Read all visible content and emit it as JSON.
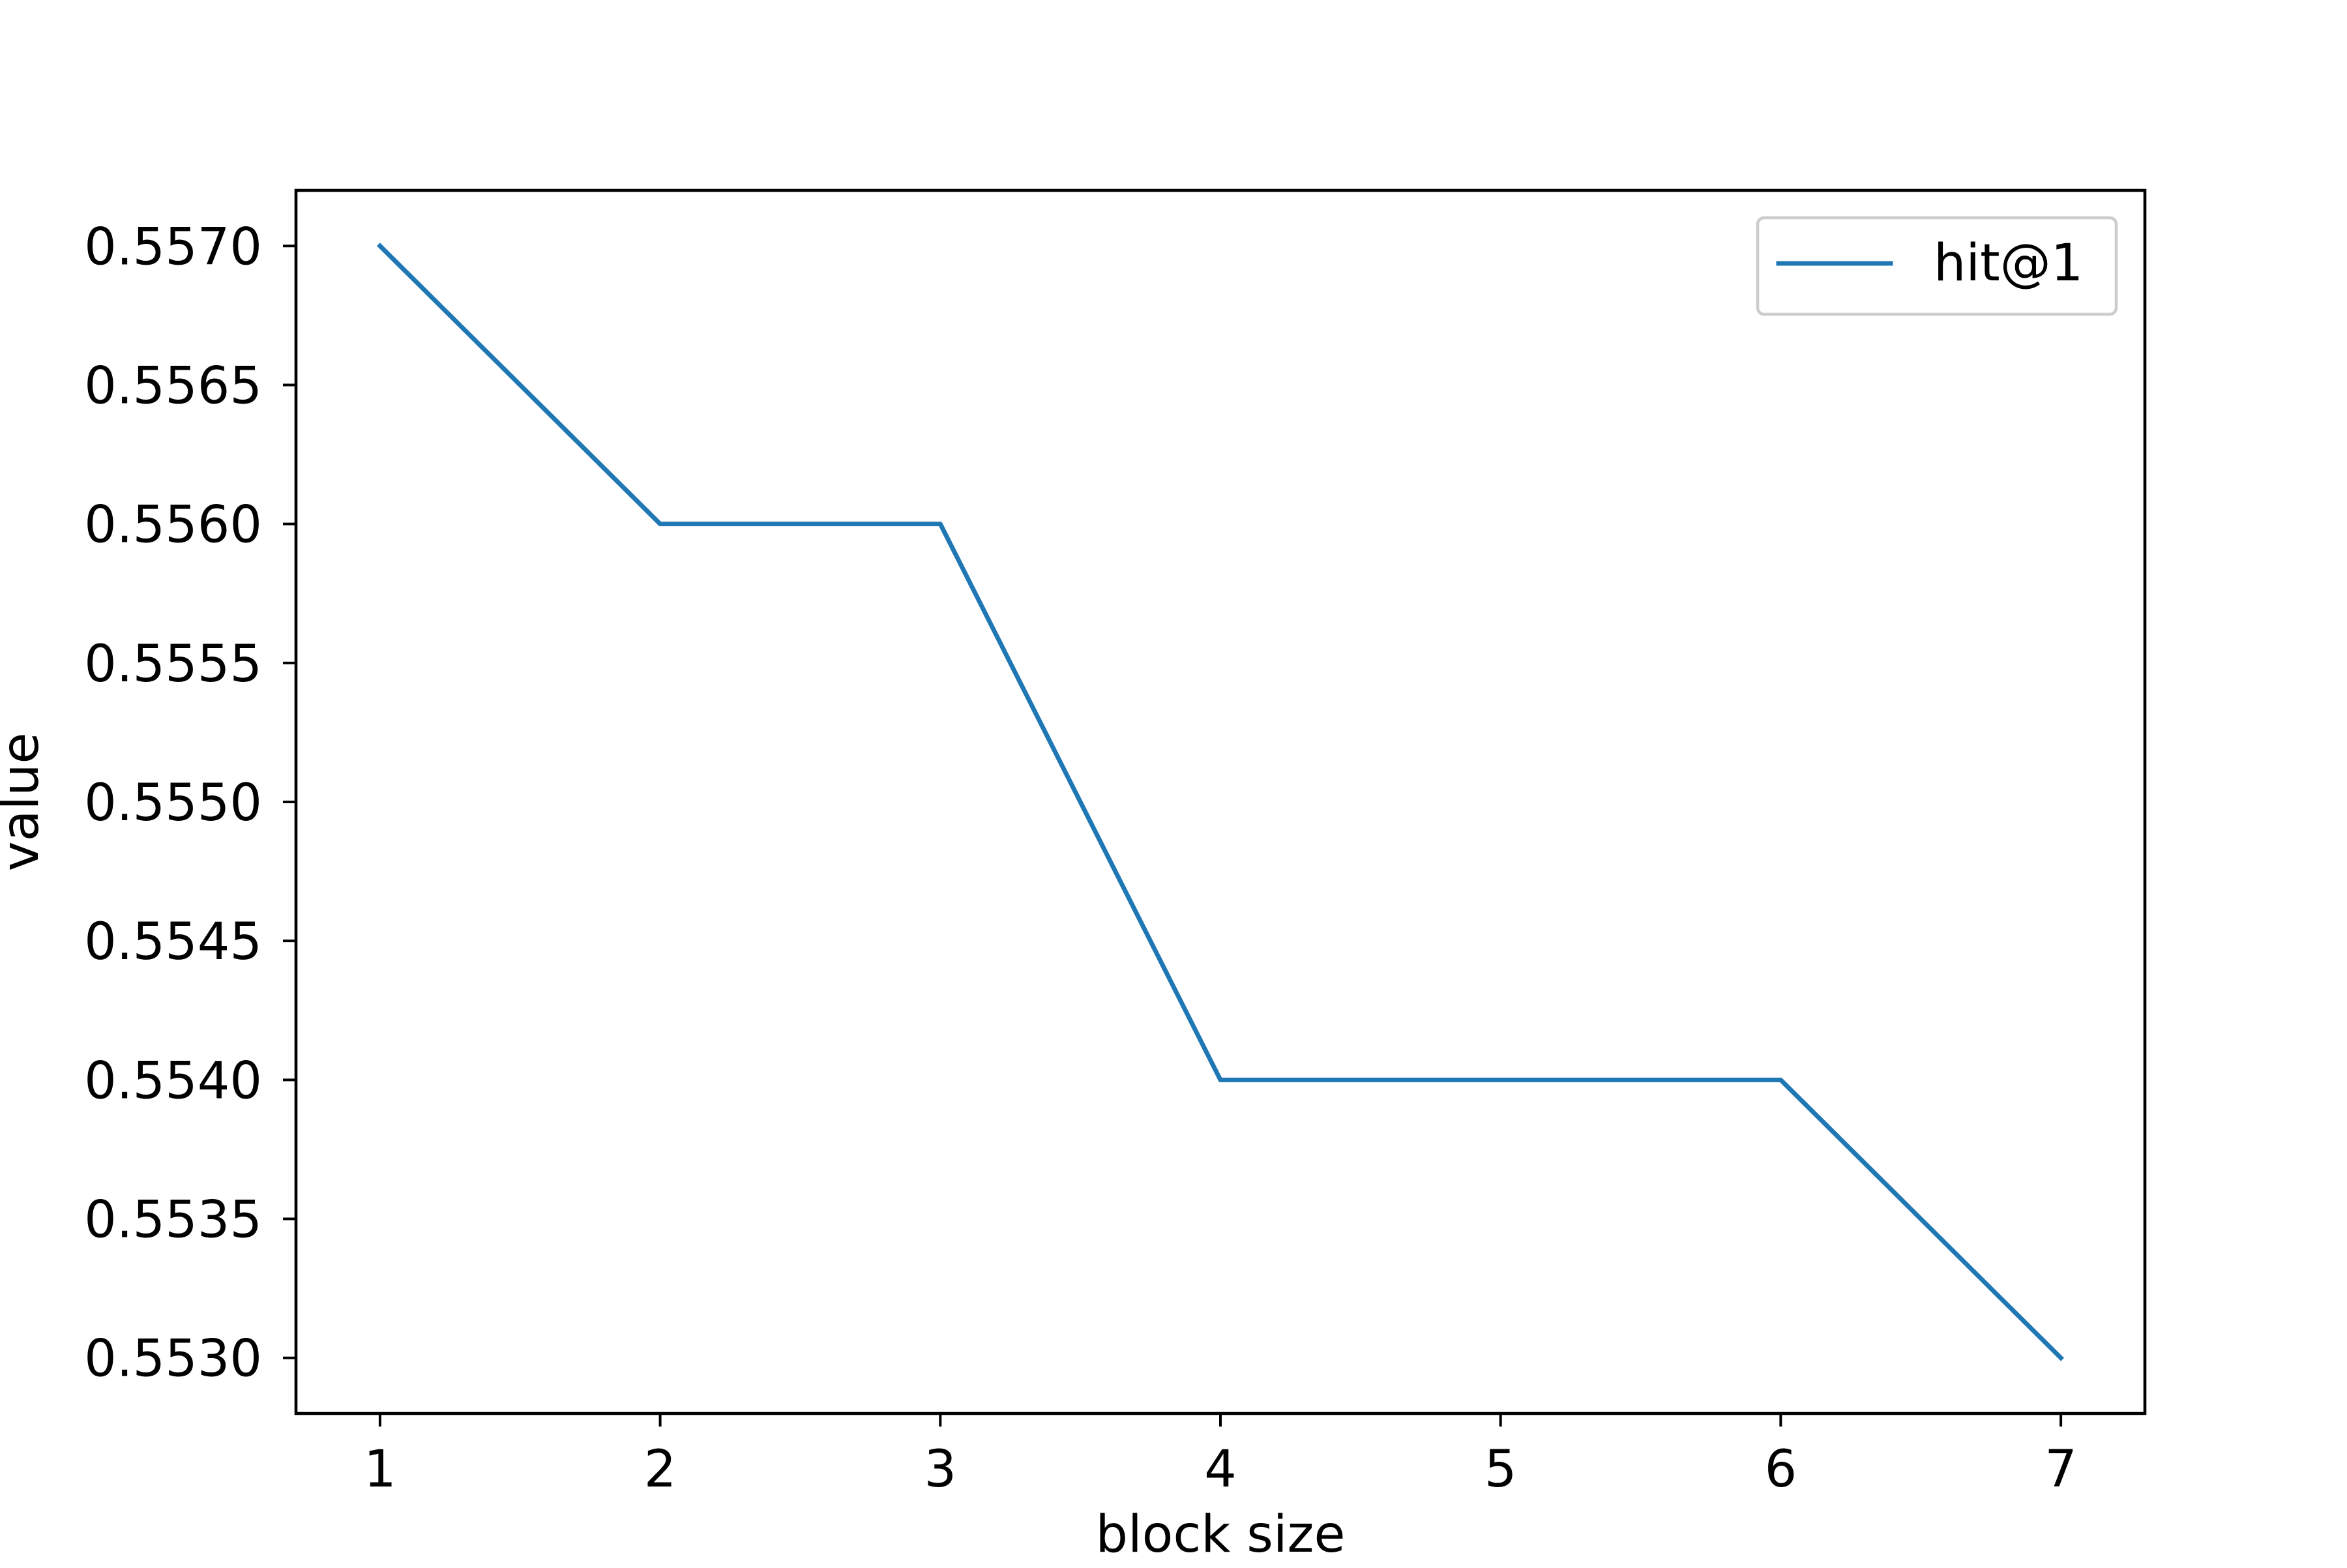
{
  "chart_data": {
    "type": "line",
    "title": "",
    "xlabel": "block size",
    "ylabel": "value",
    "x": [
      1,
      2,
      3,
      4,
      5,
      6,
      7
    ],
    "series": [
      {
        "name": "hit@1",
        "values": [
          0.557,
          0.556,
          0.556,
          0.554,
          0.554,
          0.554,
          0.553
        ],
        "color": "#1f77b4"
      }
    ],
    "xlim": [
      0.7,
      7.3
    ],
    "ylim": [
      0.5528,
      0.5572
    ],
    "xticks": [
      "1",
      "2",
      "3",
      "4",
      "5",
      "6",
      "7"
    ],
    "yticks": [
      "0.5530",
      "0.5535",
      "0.5540",
      "0.5545",
      "0.5550",
      "0.5555",
      "0.5560",
      "0.5565",
      "0.5570"
    ],
    "grid": false,
    "legend": "top-right"
  }
}
